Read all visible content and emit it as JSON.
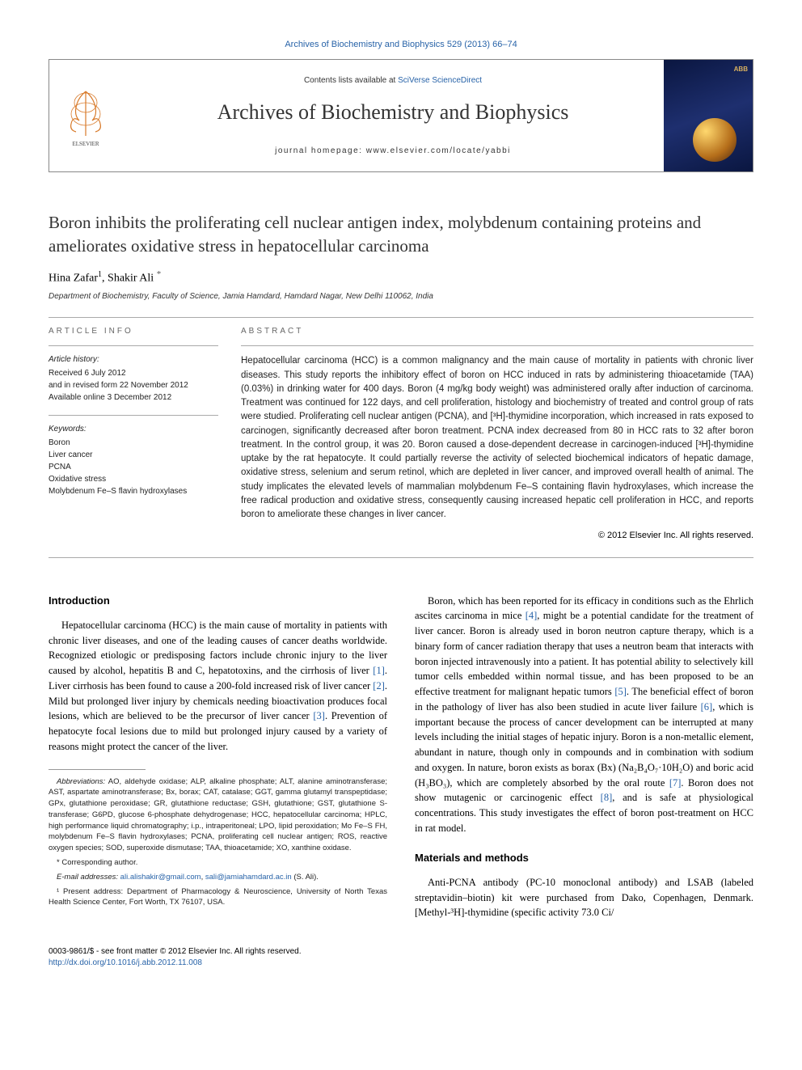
{
  "header": {
    "citation": "Archives of Biochemistry and Biophysics 529 (2013) 66–74",
    "contents_prefix": "Contents lists available at ",
    "contents_link": "SciVerse ScienceDirect",
    "journal_name": "Archives of Biochemistry and Biophysics",
    "homepage_prefix": "journal homepage: ",
    "homepage_url": "www.elsevier.com/locate/yabbi",
    "cover_label": "ABB"
  },
  "article": {
    "title": "Boron inhibits the proliferating cell nuclear antigen index, molybdenum containing proteins and ameliorates oxidative stress in hepatocellular carcinoma",
    "authors": "Hina Zafar",
    "author1_sup": "1",
    "author2": ", Shakir Ali",
    "author2_star": "*",
    "affiliation": "Department of Biochemistry, Faculty of Science, Jamia Hamdard, Hamdard Nagar, New Delhi 110062, India"
  },
  "info": {
    "heading": "ARTICLE INFO",
    "history_label": "Article history:",
    "history_text": "Received 6 July 2012\nand in revised form 22 November 2012\nAvailable online 3 December 2012",
    "keywords_label": "Keywords:",
    "keywords": "Boron\nLiver cancer\nPCNA\nOxidative stress\nMolybdenum Fe–S flavin hydroxylases"
  },
  "abstract": {
    "heading": "ABSTRACT",
    "text": "Hepatocellular carcinoma (HCC) is a common malignancy and the main cause of mortality in patients with chronic liver diseases. This study reports the inhibitory effect of boron on HCC induced in rats by administering thioacetamide (TAA) (0.03%) in drinking water for 400 days. Boron (4 mg/kg body weight) was administered orally after induction of carcinoma. Treatment was continued for 122 days, and cell proliferation, histology and biochemistry of treated and control group of rats were studied. Proliferating cell nuclear antigen (PCNA), and [³H]-thymidine incorporation, which increased in rats exposed to carcinogen, significantly decreased after boron treatment. PCNA index decreased from 80 in HCC rats to 32 after boron treatment. In the control group, it was 20. Boron caused a dose-dependent decrease in carcinogen-induced [³H]-thymidine uptake by the rat hepatocyte. It could partially reverse the activity of selected biochemical indicators of hepatic damage, oxidative stress, selenium and serum retinol, which are depleted in liver cancer, and improved overall health of animal. The study implicates the elevated levels of mammalian molybdenum Fe–S containing flavin hydroxylases, which increase the free radical production and oxidative stress, consequently causing increased hepatic cell proliferation in HCC, and reports boron to ameliorate these changes in liver cancer.",
    "copyright": "© 2012 Elsevier Inc. All rights reserved."
  },
  "body": {
    "intro_heading": "Introduction",
    "intro_p1": "Hepatocellular carcinoma (HCC) is the main cause of mortality in patients with chronic liver diseases, and one of the leading causes of cancer deaths worldwide. Recognized etiologic or predisposing factors include chronic injury to the liver caused by alcohol, hepatitis B and C, hepatotoxins, and the cirrhosis of liver [1]. Liver cirrhosis has been found to cause a 200-fold increased risk of liver cancer [2]. Mild but prolonged liver injury by chemicals needing bioactivation produces focal lesions, which are believed to be the precursor of liver cancer [3]. Prevention of hepatocyte focal lesions due to mild but prolonged injury caused by a variety of reasons might protect the cancer of the liver.",
    "col2_p1": "Boron, which has been reported for its efficacy in conditions such as the Ehrlich ascites carcinoma in mice [4], might be a potential candidate for the treatment of liver cancer. Boron is already used in boron neutron capture therapy, which is a binary form of cancer radiation therapy that uses a neutron beam that interacts with boron injected intravenously into a patient. It has potential ability to selectively kill tumor cells embedded within normal tissue, and has been proposed to be an effective treatment for malignant hepatic tumors [5]. The beneficial effect of boron in the pathology of liver has also been studied in acute liver failure [6], which is important because the process of cancer development can be interrupted at many levels including the initial stages of hepatic injury. Boron is a non-metallic element, abundant in nature, though only in compounds and in combination with sodium and oxygen. In nature, boron exists as borax (Bx) (Na₂B₄O₇·10H₂O) and boric acid (H₃BO₃), which are completely absorbed by the oral route [7]. Boron does not show mutagenic or carcinogenic effect [8], and is safe at physiological concentrations. This study investigates the effect of boron post-treatment on HCC in rat model.",
    "methods_heading": "Materials and methods",
    "methods_p1": "Anti-PCNA antibody (PC-10 monoclonal antibody) and LSAB (labeled streptavidin–biotin) kit were purchased from Dako, Copenhagen, Denmark. [Methyl-³H]-thymidine (specific activity 73.0 Ci/"
  },
  "footnotes": {
    "abbrev_label": "Abbreviations:",
    "abbrev_text": " AO, aldehyde oxidase; ALP, alkaline phosphate; ALT, alanine aminotransferase; AST, aspartate aminotransferase; Bx, borax; CAT, catalase; GGT, gamma glutamyl transpeptidase; GPx, glutathione peroxidase; GR, glutathione reductase; GSH, glutathione; GST, glutathione S-transferase; G6PD, glucose 6-phosphate dehydrogenase; HCC, hepatocellular carcinoma; HPLC, high performance liquid chromatography; i.p., intraperitoneal; LPO, lipid peroxidation; Mo Fe–S FH, molybdenum Fe–S flavin hydroxylases; PCNA, proliferating cell nuclear antigen; ROS, reactive oxygen species; SOD, superoxide dismutase; TAA, thioacetamide; XO, xanthine oxidase.",
    "corr": "* Corresponding author.",
    "email_label": "E-mail addresses: ",
    "email1": "ali.alishakir@gmail.com",
    "email_sep": ", ",
    "email2": "sali@jamiahamdard.ac.in",
    "email_suffix": " (S. Ali).",
    "present": "¹ Present address: Department of Pharmacology & Neuroscience, University of North Texas Health Science Center, Fort Worth, TX 76107, USA."
  },
  "footer": {
    "front_matter": "0003-9861/$ - see front matter © 2012 Elsevier Inc. All rights reserved.",
    "doi": "http://dx.doi.org/10.1016/j.abb.2012.11.008"
  },
  "colors": {
    "link": "#2863a8",
    "text": "#222222",
    "border": "#aaaaaa",
    "cover_bg_from": "#0a1640",
    "cover_bg_to": "#1e2f6f"
  },
  "typography": {
    "title_fontsize": 21,
    "journal_fontsize": 26,
    "body_fontsize": 12.5,
    "abstract_fontsize": 11.5,
    "footnote_fontsize": 9.5
  }
}
